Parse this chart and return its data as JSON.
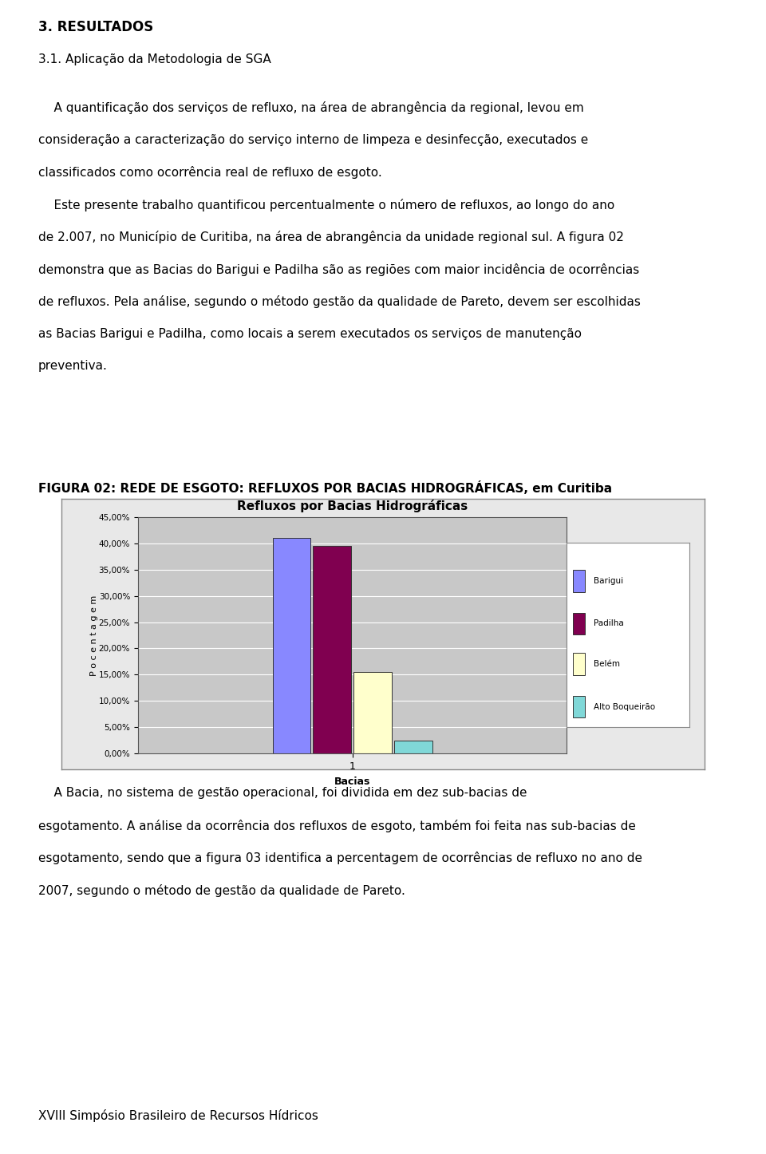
{
  "title": "Refluxos por Bacias Hidrográficas",
  "xlabel": "Bacias",
  "ylabel": "P o c e n t a g e m",
  "series": [
    {
      "label": "Barigui",
      "value": 41.0,
      "color": "#8888ff"
    },
    {
      "label": "Padilha",
      "value": 39.5,
      "color": "#800050"
    },
    {
      "label": "Belém",
      "value": 15.5,
      "color": "#ffffcc"
    },
    {
      "label": "Alto Boqueirão",
      "value": 2.5,
      "color": "#80d8d8"
    }
  ],
  "yticks": [
    0.0,
    0.05,
    0.1,
    0.15,
    0.2,
    0.25,
    0.3,
    0.35,
    0.4,
    0.45
  ],
  "ytick_labels": [
    "0,00%",
    "5,00%",
    "10,00%",
    "15,00%",
    "20,00%",
    "25,00%",
    "30,00%",
    "35,00%",
    "40,00%",
    "45,00%"
  ],
  "fig_caption": "FIGURA 02: REDE DE ESGOTO: REFLUXOS POR BACIAS HIDROGRÁFICAS, em Curitiba",
  "plot_area_bg": "#c8c8c8",
  "chart_outer_bg": "#e8e8e8",
  "heading1": "3. RESULTADOS",
  "heading2": "3.1. Aplicação da Metodologia de SGA",
  "para1_line1": "    A quantificação dos serviços de refluxo, na área de abrangência da regional, levou em",
  "para1_line2": "consideração a caracterização do serviço interno de limpeza e desinfecção, executados e",
  "para1_line3": "classificados como ocorrência real de refluxo de esgoto.",
  "para1_line4": "    Este presente trabalho quantificou percentualmente o número de refluxos, ao longo do ano",
  "para1_line5": "de 2.007, no Município de Curitiba, na área de abrangência da unidade regional sul. A figura 02",
  "para1_line6": "demonstra que as Bacias do Barigui e Padilha são as regiões com maior incidência de ocorrências",
  "para1_line7": "de refluxos. Pela análise, segundo o método gestão da qualidade de Pareto, devem ser escolhidas",
  "para1_line8": "as Bacias Barigui e Padilha, como locais a serem executados os serviços de manutenção",
  "para1_line9": "preventiva.",
  "para2_line1": "    A Bacia, no sistema de gestão operacional, foi dividida em dez sub-bacias de",
  "para2_line2": "esgotamento. A análise da ocorrência dos refluxos de esgoto, também foi feita nas sub-bacias de",
  "para2_line3": "esgotamento, sendo que a figura 03 identifica a percentagem de ocorrências de refluxo no ano de",
  "para2_line4": "2007, segundo o método de gestão da qualidade de Pareto.",
  "footer": "XVIII Simpósio Brasileiro de Recursos Hídricos",
  "legend_labels": [
    "Barigui",
    "Padilha",
    "Belém",
    "Alto Boqueirão"
  ],
  "legend_colors": [
    "#8888ff",
    "#800050",
    "#ffffcc",
    "#80d8d8"
  ]
}
